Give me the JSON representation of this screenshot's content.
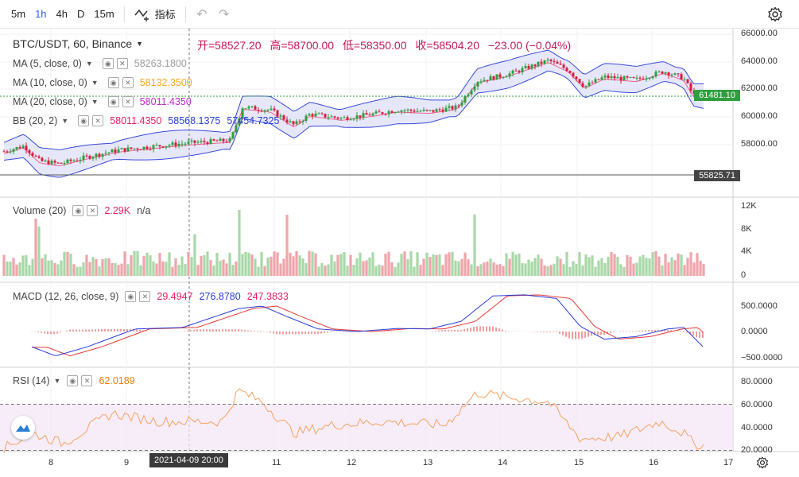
{
  "toolbar": {
    "intervals": [
      {
        "label": "5m",
        "active": false
      },
      {
        "label": "1h",
        "active": true
      },
      {
        "label": "4h",
        "active": false
      },
      {
        "label": "D",
        "active": false
      },
      {
        "label": "15m",
        "active": false
      }
    ],
    "indicators_label": "指标",
    "icons": [
      "undo-icon",
      "redo-icon",
      "settings-icon"
    ]
  },
  "symbol": {
    "label": "BTC/USDT, 60, Binance"
  },
  "ohlc": {
    "open": "开=58527.20",
    "high": "高=58700.00",
    "low": "低=58350.00",
    "close": "收=58504.20",
    "change": "−23.00 (−0.04%)"
  },
  "legends": {
    "ma5": {
      "name": "MA (5, close, 0)",
      "value": "58263.1800",
      "color": "#9e9e9e"
    },
    "ma10": {
      "name": "MA (10, close, 0)",
      "value": "58132.3500",
      "color": "#f5a623"
    },
    "ma20": {
      "name": "MA (20, close, 0)",
      "value": "58011.4350",
      "color": "#c026d3"
    },
    "bb": {
      "name": "BB (20, 2)",
      "v1": "58011.4350",
      "v2": "58568.1375",
      "v3": "57454.7325",
      "c1": "#e91e63",
      "c2": "#2a3cd8",
      "c3": "#2a3cd8"
    },
    "volume": {
      "name": "Volume (20)",
      "v1": "2.29K",
      "v2": "n/a",
      "color": "#e91e63"
    },
    "macd": {
      "name": "MACD (12, 26, close, 9)",
      "v1": "29.4947",
      "v2": "276.8780",
      "v3": "247.3833",
      "c1": "#e91e63",
      "c2": "#2a3cd8",
      "c3": "#e91e63"
    },
    "rsi": {
      "name": "RSI (14)",
      "value": "62.0189",
      "color": "#f57c00"
    }
  },
  "price_axis": [
    "66000.00",
    "64000.00",
    "62000.00",
    "60000.00",
    "58000.00"
  ],
  "current_price": "61481.10",
  "crosshair_price": "55825.71",
  "volume_axis": [
    "12K",
    "8K",
    "4K",
    "0"
  ],
  "macd_axis": [
    "500.0000",
    "0.0000",
    "−500.0000"
  ],
  "rsi_axis": [
    "80.0000",
    "60.0000",
    "40.0000",
    "20.0000"
  ],
  "time_axis": [
    "8",
    "9",
    "11",
    "12",
    "13",
    "14",
    "15",
    "16",
    "17"
  ],
  "crosshair_time": "2021-04-09   20:00",
  "colors": {
    "up": "#2e9e3e",
    "down": "#d81b3c",
    "bb_fill": "#d6d9f5",
    "bb_line": "#3949d8",
    "ma": "#f06292",
    "macd_line": "#2a3cd8",
    "signal": "#e53935",
    "rsi": "#f4a261"
  }
}
